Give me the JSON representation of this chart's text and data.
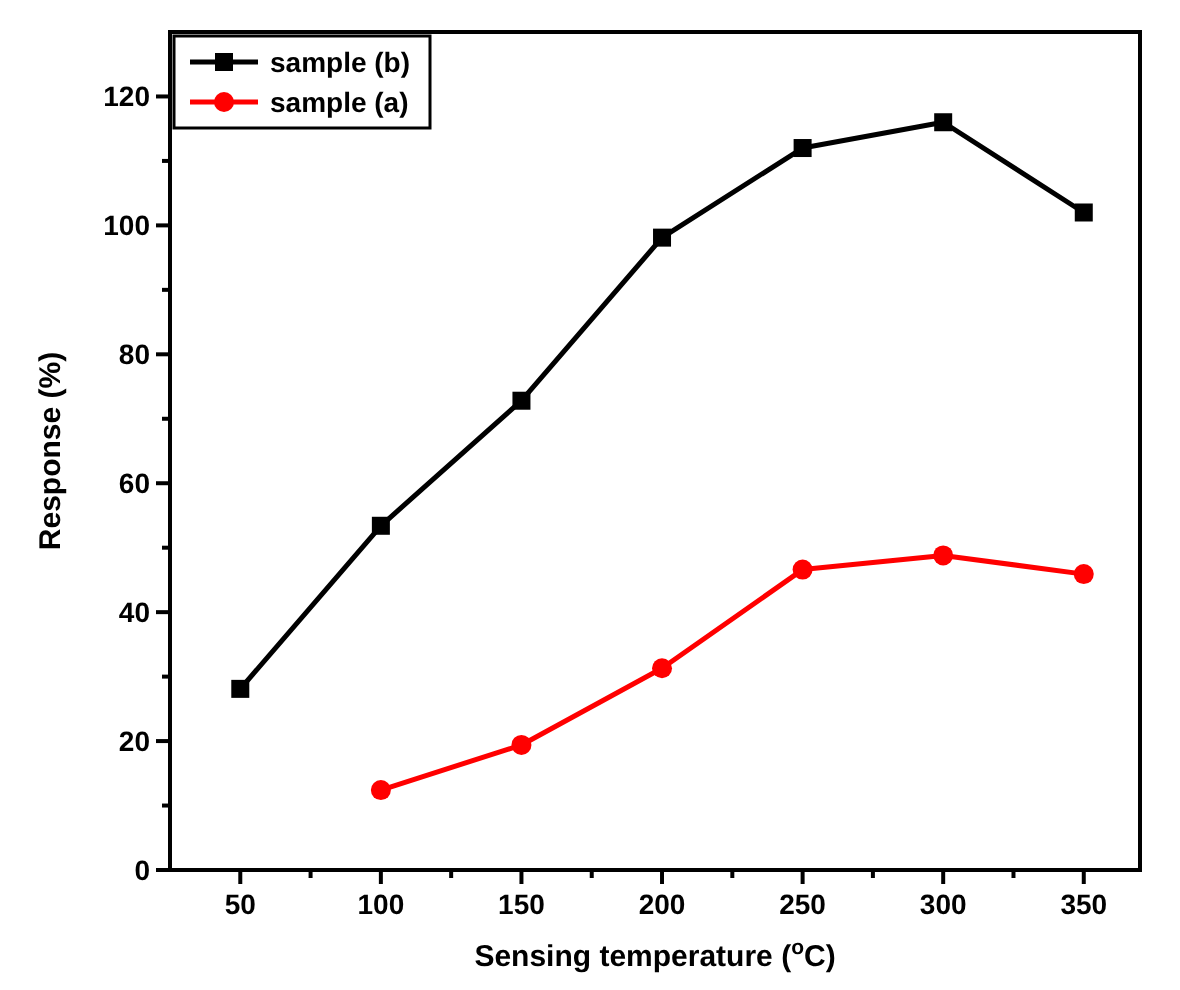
{
  "chart_data": {
    "type": "line",
    "xlabel": "Sensing temperature ($^{o}$C)",
    "ylabel": "Response (%)",
    "x": [
      50,
      100,
      150,
      200,
      250,
      300,
      350
    ],
    "series": [
      {
        "name": "sample (b)",
        "color": "#000000",
        "marker": "square",
        "values": [
          28.1,
          53.4,
          72.8,
          98.1,
          112,
          116,
          102
        ]
      },
      {
        "name": "sample (a)",
        "color": "#ff0000",
        "marker": "circle",
        "values": [
          null,
          12.4,
          19.4,
          31.3,
          46.6,
          48.8,
          45.9
        ]
      }
    ],
    "xlim": [
      25,
      370
    ],
    "xticks": [
      50,
      {
        "value": 75,
        "label": null
      },
      100,
      {
        "value": 125,
        "label": null
      },
      150,
      {
        "value": 175,
        "label": null
      },
      200,
      {
        "value": 225,
        "label": null
      },
      250,
      {
        "value": 275,
        "label": null
      },
      300,
      {
        "value": 325,
        "label": null
      },
      350
    ],
    "ylim": [
      0,
      130
    ],
    "yticks": [
      0,
      {
        "value": 10,
        "label": null
      },
      20,
      {
        "value": 30,
        "label": null
      },
      40,
      {
        "value": 50,
        "label": null
      },
      60,
      {
        "value": 70,
        "label": null
      },
      80,
      {
        "value": 90,
        "label": null
      },
      100,
      {
        "value": 110,
        "label": null
      },
      120
    ],
    "legend": "top left",
    "grid": false
  }
}
